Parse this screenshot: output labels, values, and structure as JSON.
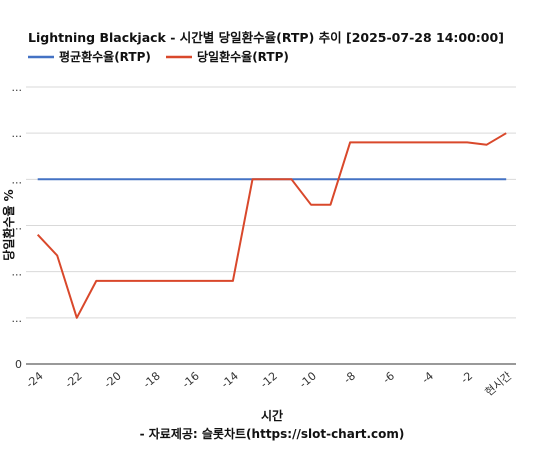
{
  "chart_data": {
    "type": "line",
    "title": "Lightning Blackjack - 시간별 당일환수율(RTP) 추이 [2025-07-28 14:00:00]",
    "xlabel": "시간",
    "ylabel": "당일환수율 %",
    "source": "- 자료제공: 슬롯차트(https://slot-chart.com)",
    "y_tick_labels": [
      "0",
      "...",
      "...",
      "...",
      "...",
      "...",
      "..."
    ],
    "x_tick_labels": [
      "-24",
      "-22",
      "-20",
      "-18",
      "-16",
      "-14",
      "-12",
      "-10",
      "-8",
      "-6",
      "-4",
      "-2",
      "현시간"
    ],
    "x_tick_values": [
      -24,
      -22,
      -20,
      -18,
      -16,
      -14,
      -12,
      -10,
      -8,
      -6,
      -4,
      -2,
      0
    ],
    "xlim": [
      -24.6,
      0.5
    ],
    "ylim": [
      0,
      6
    ],
    "grid": true,
    "legend_position": "top-left",
    "x": [
      -24,
      -23,
      -22,
      -21,
      -20,
      -19,
      -18,
      -17,
      -16,
      -15,
      -14,
      -13,
      -12,
      -11,
      -10,
      -9,
      -8,
      -7,
      -6,
      -5,
      -4,
      -3,
      -2,
      -1,
      0
    ],
    "series": [
      {
        "name": "평균환수율(RTP)",
        "color": "#4472c4",
        "values": [
          4.0,
          4.0,
          4.0,
          4.0,
          4.0,
          4.0,
          4.0,
          4.0,
          4.0,
          4.0,
          4.0,
          4.0,
          4.0,
          4.0,
          4.0,
          4.0,
          4.0,
          4.0,
          4.0,
          4.0,
          4.0,
          4.0,
          4.0,
          4.0,
          4.0
        ]
      },
      {
        "name": "당일환수율(RTP)",
        "color": "#d9482b",
        "values": [
          2.8,
          2.35,
          1.0,
          1.8,
          1.8,
          1.8,
          1.8,
          1.8,
          1.8,
          1.8,
          1.8,
          4.0,
          4.0,
          4.0,
          3.45,
          3.45,
          4.8,
          4.8,
          4.8,
          4.8,
          4.8,
          4.8,
          4.8,
          4.75,
          5.0
        ]
      }
    ]
  }
}
